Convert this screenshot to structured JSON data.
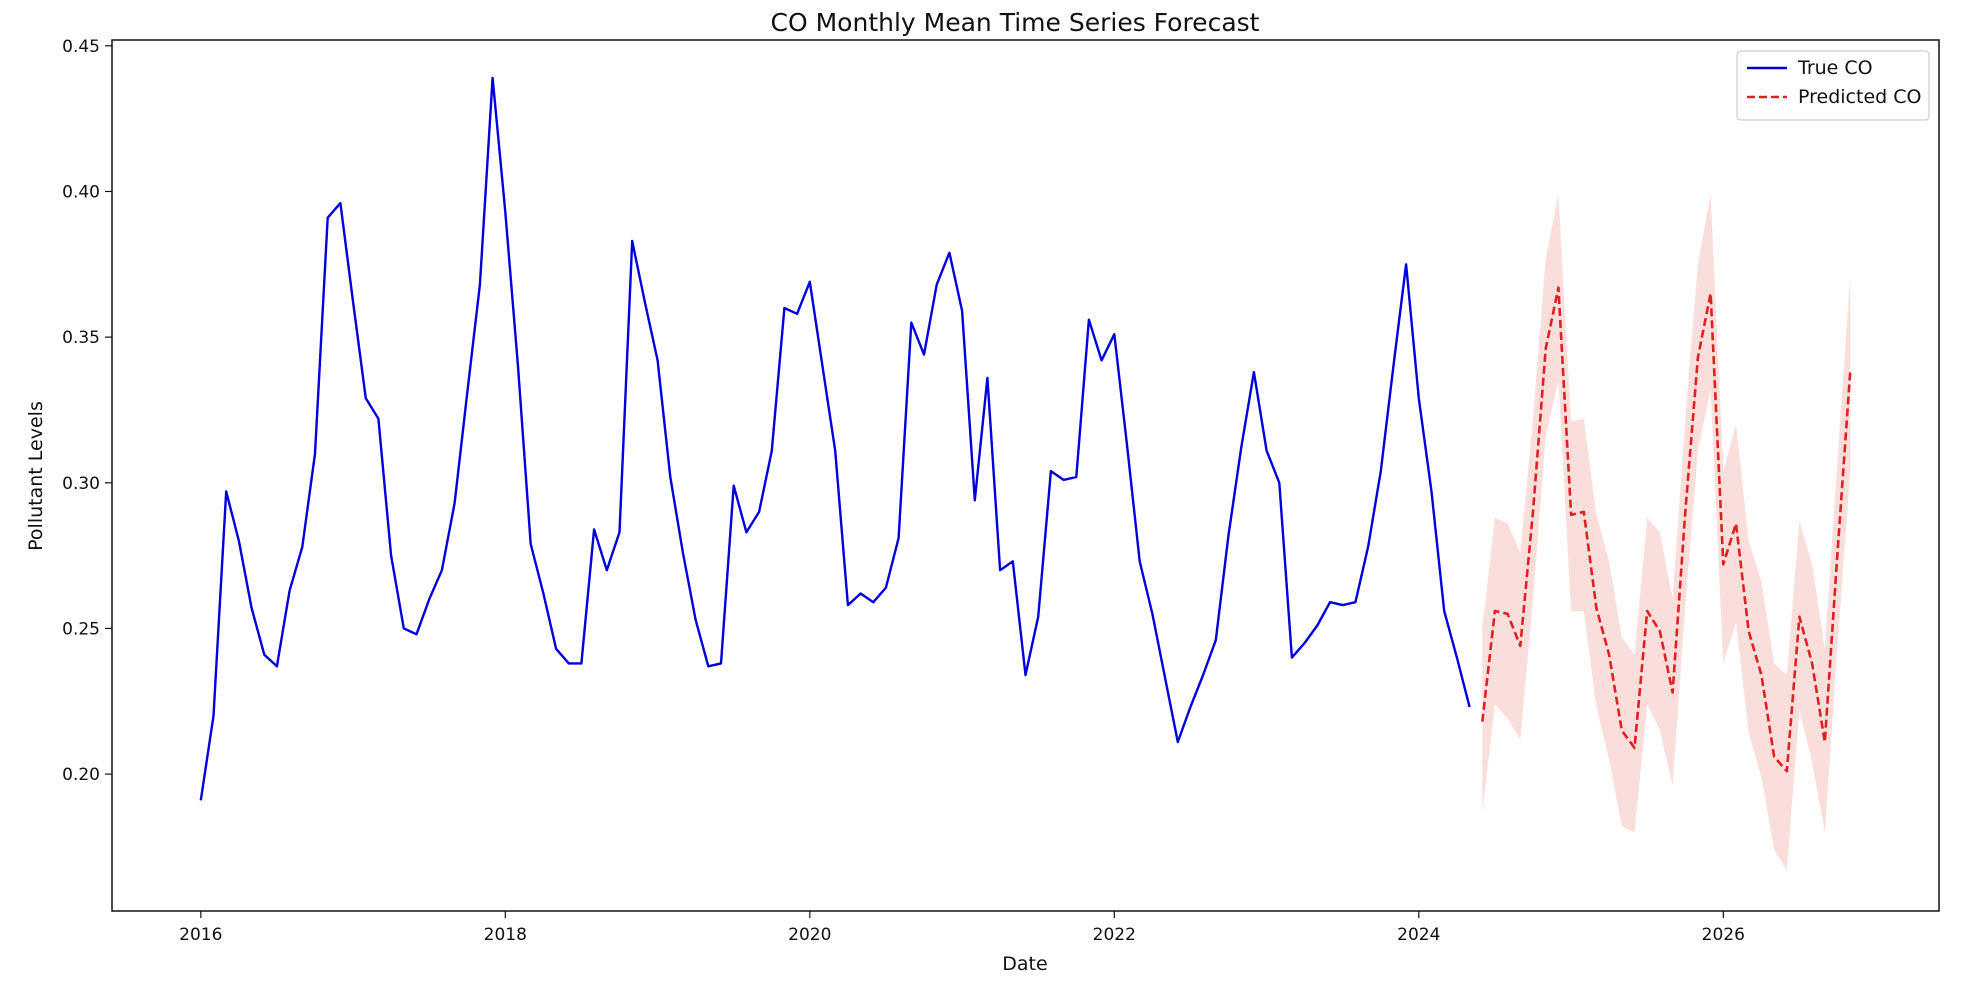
{
  "chart_data": {
    "type": "line",
    "title": "CO Monthly Mean Time Series Forecast",
    "xlabel": "Date",
    "ylabel": "Pollutant Levels",
    "xlim": [
      "2015-06",
      "2027-06"
    ],
    "ylim": [
      0.153,
      0.452
    ],
    "x_ticks": [
      "2016",
      "2018",
      "2020",
      "2022",
      "2024",
      "2026"
    ],
    "y_ticks": [
      "0.20",
      "0.25",
      "0.30",
      "0.35",
      "0.40",
      "0.45"
    ],
    "grid": false,
    "legend_position": "top-right",
    "series": [
      {
        "name": "True CO",
        "color": "#0000dd",
        "style": "solid",
        "x": [
          "2016-01",
          "2016-02",
          "2016-03",
          "2016-04",
          "2016-05",
          "2016-06",
          "2016-07",
          "2016-08",
          "2016-09",
          "2016-10",
          "2016-11",
          "2016-12",
          "2017-01",
          "2017-02",
          "2017-03",
          "2017-04",
          "2017-05",
          "2017-06",
          "2017-07",
          "2017-08",
          "2017-09",
          "2017-10",
          "2017-11",
          "2017-12",
          "2018-01",
          "2018-02",
          "2018-03",
          "2018-04",
          "2018-05",
          "2018-06",
          "2018-07",
          "2018-08",
          "2018-09",
          "2018-10",
          "2018-11",
          "2018-12",
          "2019-01",
          "2019-02",
          "2019-03",
          "2019-04",
          "2019-05",
          "2019-06",
          "2019-07",
          "2019-08",
          "2019-09",
          "2019-10",
          "2019-11",
          "2019-12",
          "2020-01",
          "2020-02",
          "2020-03",
          "2020-04",
          "2020-05",
          "2020-06",
          "2020-07",
          "2020-08",
          "2020-09",
          "2020-10",
          "2020-11",
          "2020-12",
          "2021-01",
          "2021-02",
          "2021-03",
          "2021-04",
          "2021-05",
          "2021-06",
          "2021-07",
          "2021-08",
          "2021-09",
          "2021-10",
          "2021-11",
          "2021-12",
          "2022-01",
          "2022-02",
          "2022-03",
          "2022-04",
          "2022-05",
          "2022-06",
          "2022-07",
          "2022-08",
          "2022-09",
          "2022-10",
          "2022-11",
          "2022-12",
          "2023-01",
          "2023-02",
          "2023-03",
          "2023-04",
          "2023-05",
          "2023-06",
          "2023-07",
          "2023-08",
          "2023-09",
          "2023-10",
          "2023-11",
          "2023-12",
          "2024-01",
          "2024-02",
          "2024-03",
          "2024-04",
          "2024-05"
        ],
        "values": [
          0.191,
          0.22,
          0.297,
          0.28,
          0.257,
          0.241,
          0.237,
          0.263,
          0.278,
          0.31,
          0.391,
          0.396,
          0.362,
          0.329,
          0.322,
          0.275,
          0.25,
          0.248,
          0.26,
          0.27,
          0.293,
          0.331,
          0.368,
          0.439,
          0.393,
          0.34,
          0.279,
          0.262,
          0.243,
          0.238,
          0.238,
          0.284,
          0.27,
          0.283,
          0.383,
          0.362,
          0.342,
          0.302,
          0.276,
          0.253,
          0.237,
          0.238,
          0.299,
          0.283,
          0.29,
          0.311,
          0.36,
          0.358,
          0.369,
          0.34,
          0.311,
          0.258,
          0.262,
          0.259,
          0.264,
          0.281,
          0.355,
          0.344,
          0.368,
          0.379,
          0.359,
          0.294,
          0.336,
          0.27,
          0.273,
          0.234,
          0.254,
          0.304,
          0.301,
          0.302,
          0.356,
          0.342,
          0.351,
          0.313,
          0.273,
          0.255,
          0.233,
          0.211,
          0.223,
          0.234,
          0.246,
          0.282,
          0.312,
          0.338,
          0.311,
          0.3,
          0.24,
          0.245,
          0.251,
          0.259,
          0.258,
          0.259,
          0.278,
          0.304,
          0.34,
          0.375,
          0.329,
          0.297,
          0.256,
          0.24,
          0.223
        ]
      },
      {
        "name": "Predicted CO",
        "color": "#e02020",
        "style": "dashed",
        "x": [
          "2024-06",
          "2024-07",
          "2024-08",
          "2024-09",
          "2024-10",
          "2024-11",
          "2024-12",
          "2025-01",
          "2025-02",
          "2025-03",
          "2025-04",
          "2025-05",
          "2025-06",
          "2025-07",
          "2025-08",
          "2025-09",
          "2025-10",
          "2025-11",
          "2025-12",
          "2026-01",
          "2026-02",
          "2026-03",
          "2026-04",
          "2026-05",
          "2026-06",
          "2026-07",
          "2026-08",
          "2026-09",
          "2026-10",
          "2026-11"
        ],
        "values": [
          0.218,
          0.256,
          0.255,
          0.244,
          0.29,
          0.346,
          0.367,
          0.289,
          0.29,
          0.257,
          0.241,
          0.215,
          0.209,
          0.256,
          0.249,
          0.228,
          0.29,
          0.343,
          0.365,
          0.272,
          0.286,
          0.249,
          0.234,
          0.206,
          0.201,
          0.254,
          0.238,
          0.211,
          0.276,
          0.338
        ],
        "interval_lower": [
          0.187,
          0.224,
          0.219,
          0.212,
          0.26,
          0.316,
          0.335,
          0.256,
          0.256,
          0.223,
          0.205,
          0.182,
          0.18,
          0.224,
          0.215,
          0.196,
          0.258,
          0.311,
          0.332,
          0.238,
          0.252,
          0.214,
          0.199,
          0.174,
          0.167,
          0.222,
          0.204,
          0.18,
          0.244,
          0.304
        ],
        "interval_upper": [
          0.25,
          0.288,
          0.286,
          0.276,
          0.322,
          0.377,
          0.399,
          0.321,
          0.322,
          0.289,
          0.273,
          0.247,
          0.241,
          0.288,
          0.283,
          0.26,
          0.322,
          0.375,
          0.399,
          0.304,
          0.32,
          0.28,
          0.266,
          0.238,
          0.234,
          0.287,
          0.272,
          0.243,
          0.308,
          0.371
        ],
        "interval_color": "#f4b6b0"
      }
    ]
  }
}
